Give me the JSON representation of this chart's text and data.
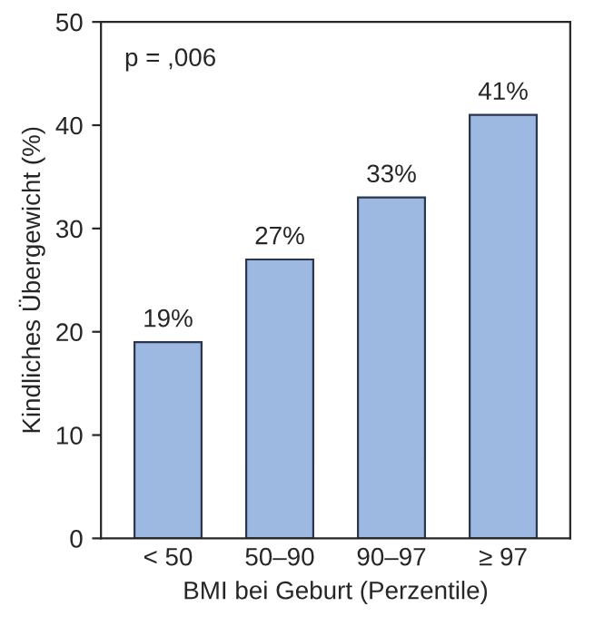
{
  "chart_data": {
    "type": "bar",
    "xlabel": "BMI bei Geburt (Perzentile)",
    "ylabel": "Kindliches Übergewicht (%)",
    "categories": [
      "< 50",
      "50–90",
      "90–97",
      "≥ 97"
    ],
    "values": [
      19,
      27,
      33,
      41
    ],
    "value_labels": [
      "19%",
      "27%",
      "33%",
      "41%"
    ],
    "color": "#9db9e2",
    "ylim": [
      0,
      50
    ],
    "yticks": [
      0,
      10,
      20,
      30,
      40,
      50
    ],
    "annotations": [
      "p = ,006"
    ],
    "grid": false,
    "legend": false
  }
}
